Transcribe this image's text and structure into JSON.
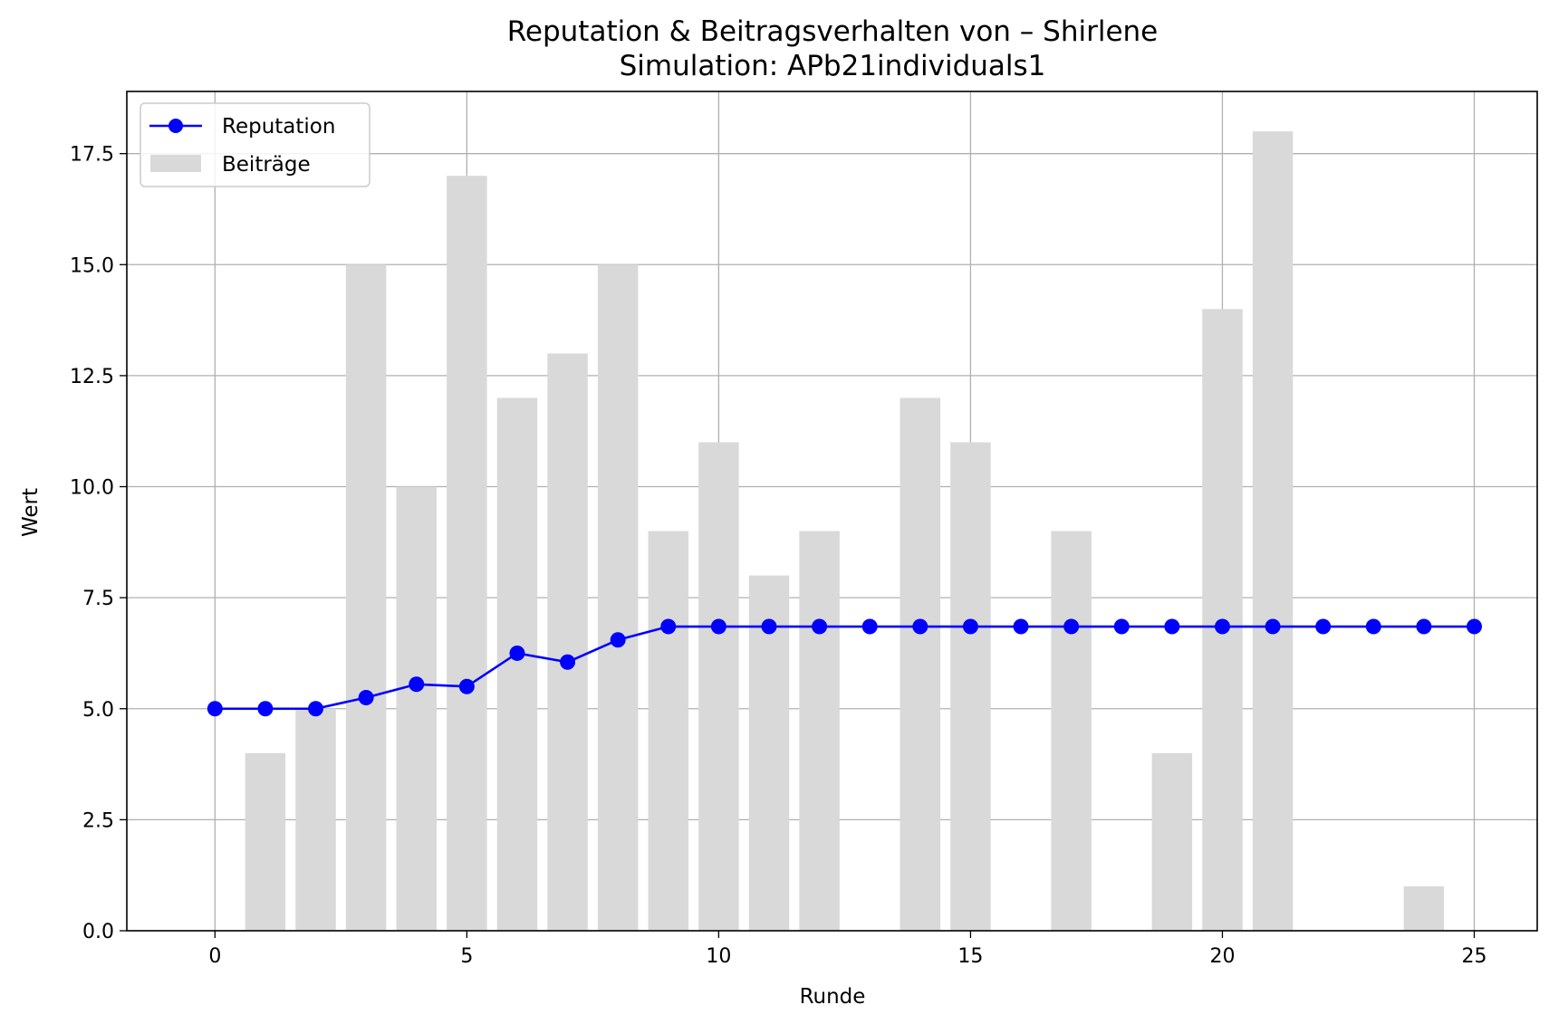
{
  "chart_data": {
    "type": "bar+line",
    "title": "Reputation & Beitragsverhalten von – Shirlene",
    "subtitle": "Simulation: APb21individuals1",
    "xlabel": "Runde",
    "ylabel": "Wert",
    "xlim": [
      -1.75,
      26.25
    ],
    "ylim": [
      0,
      18.9
    ],
    "xticks": [
      0,
      5,
      10,
      15,
      20,
      25
    ],
    "yticks": [
      0.0,
      2.5,
      5.0,
      7.5,
      10.0,
      12.5,
      15.0,
      17.5
    ],
    "xtick_labels": [
      "0",
      "5",
      "10",
      "15",
      "20",
      "25"
    ],
    "ytick_labels": [
      "0.0",
      "2.5",
      "5.0",
      "7.5",
      "10.0",
      "12.5",
      "15.0",
      "17.5"
    ],
    "grid": true,
    "legend_position": "upper-left",
    "x": [
      0,
      1,
      2,
      3,
      4,
      5,
      6,
      7,
      8,
      9,
      10,
      11,
      12,
      13,
      14,
      15,
      16,
      17,
      18,
      19,
      20,
      21,
      22,
      23,
      24,
      25
    ],
    "series": [
      {
        "name": "Reputation",
        "kind": "line",
        "color": "#0000ff",
        "values": [
          5.0,
          5.0,
          5.0,
          5.25,
          5.55,
          5.5,
          6.25,
          6.05,
          6.55,
          6.85,
          6.85,
          6.85,
          6.85,
          6.85,
          6.85,
          6.85,
          6.85,
          6.85,
          6.85,
          6.85,
          6.85,
          6.85,
          6.85,
          6.85,
          6.85,
          6.85
        ]
      },
      {
        "name": "Beiträge",
        "kind": "bar",
        "color": "#d9d9d9",
        "values": [
          0,
          4,
          5,
          15,
          10,
          17,
          12,
          13,
          15,
          9,
          11,
          8,
          9,
          0,
          12,
          11,
          0,
          9,
          0,
          4,
          14,
          18,
          0,
          0,
          1,
          0
        ]
      }
    ]
  }
}
